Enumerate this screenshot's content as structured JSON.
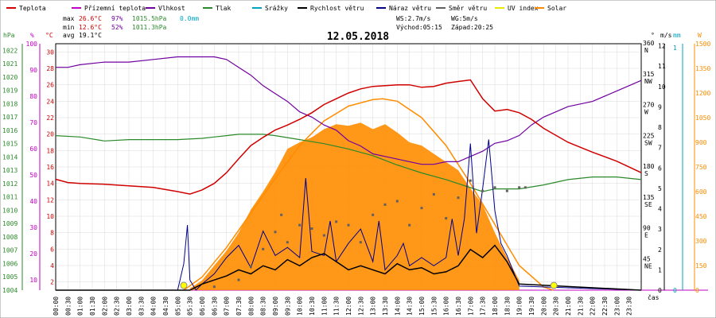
{
  "chart_data": {
    "type": "line",
    "title": "12.05.2018",
    "legend": [
      {
        "name": "Teplota",
        "color": "#d00000"
      },
      {
        "name": "Přízemní teplota",
        "color": "#c000c0"
      },
      {
        "name": "Vlhkost",
        "color": "#7000a0"
      },
      {
        "name": "Tlak",
        "color": "#2a8a2a"
      },
      {
        "name": "Srážky",
        "color": "#00a0c0"
      },
      {
        "name": "Rychlost větru",
        "color": "#000000"
      },
      {
        "name": "Náraz větru",
        "color": "#00008b"
      },
      {
        "name": "Směr větru",
        "color": "#606060"
      },
      {
        "name": "UV index",
        "color": "#e8e800"
      },
      {
        "name": "Solar",
        "color": "#ff8c00"
      }
    ],
    "stats": {
      "max_label": "max",
      "max_temp": "26.6°C",
      "max_hum": "97%",
      "max_press": "1015.5hPa",
      "rain_total": "0.0mm",
      "min_label": "min",
      "min_temp": "12.6°C",
      "min_hum": "52%",
      "min_press": "1011.3hPa",
      "avg_label": "avg",
      "avg_temp": "19.1°C"
    },
    "wind_info": {
      "ws": "WS:2.7m/s",
      "wg": "WG:5m/s",
      "sunrise": "Východ:05:15",
      "sunset": "Západ:20:25"
    },
    "axis_units": {
      "hpa": "hPa",
      "pct": "%",
      "degc": "°C",
      "deg": "°",
      "ms": "m/s",
      "mm": "mm",
      "w": "W",
      "xlabel": "čas"
    },
    "x_ticks": [
      "00:00",
      "00:30",
      "01:00",
      "01:30",
      "02:00",
      "02:30",
      "03:00",
      "03:30",
      "04:00",
      "04:30",
      "05:00",
      "05:30",
      "06:00",
      "06:30",
      "07:00",
      "07:30",
      "08:00",
      "08:30",
      "09:00",
      "09:30",
      "10:00",
      "10:30",
      "11:00",
      "11:30",
      "12:00",
      "12:30",
      "13:00",
      "13:30",
      "14:00",
      "14:30",
      "15:00",
      "15:30",
      "16:00",
      "16:30",
      "17:00",
      "17:30",
      "18:00",
      "18:30",
      "19:00",
      "19:30",
      "20:00",
      "20:30",
      "21:00",
      "21:30",
      "22:00",
      "22:30",
      "23:00",
      "23:30"
    ],
    "y_axes": {
      "hpa": [
        "1004",
        "1005",
        "1006",
        "1007",
        "1008",
        "1009",
        "1010",
        "1011",
        "1012",
        "1013",
        "1014",
        "1015",
        "1016",
        "1017",
        "1018",
        "1019",
        "1020",
        "1021",
        "1022"
      ],
      "pct": [
        "10",
        "20",
        "30",
        "40",
        "50",
        "60",
        "70",
        "80",
        "90",
        "100"
      ],
      "degc": [
        "2",
        "4",
        "6",
        "8",
        "10",
        "12",
        "14",
        "16",
        "18",
        "20",
        "22",
        "24",
        "26",
        "28",
        "30"
      ],
      "dir_deg": [
        "45",
        "90",
        "135",
        "180",
        "225",
        "270",
        "315",
        "360"
      ],
      "dir_label": [
        "NE",
        "E",
        "SE",
        "S",
        "SW",
        "W",
        "NW",
        "N"
      ],
      "ms": [
        "0",
        "1",
        "2",
        "3",
        "4",
        "5",
        "6",
        "7",
        "8",
        "9",
        "10",
        "11",
        "12"
      ],
      "mm": [
        "0",
        "1"
      ],
      "w": [
        "0",
        "150",
        "300",
        "450",
        "600",
        "750",
        "900",
        "1050",
        "1200",
        "1350",
        "1500"
      ]
    },
    "ranges": {
      "temp": [
        1,
        31
      ],
      "hum": [
        6,
        100
      ],
      "press": [
        1004,
        1022.5
      ],
      "wind": [
        0,
        12.1
      ],
      "dir": [
        0,
        360
      ],
      "solar": [
        0,
        1500
      ]
    },
    "series": [
      {
        "name": "Teplota",
        "unit": "°C",
        "x": [
          0,
          0.5,
          1,
          2,
          3,
          4,
          5,
          5.5,
          6,
          6.5,
          7,
          7.5,
          8,
          8.5,
          9,
          9.5,
          10,
          10.5,
          11,
          11.5,
          12,
          12.5,
          13,
          13.5,
          14,
          14.5,
          15,
          15.5,
          16,
          16.5,
          17,
          17.5,
          18,
          18.5,
          19,
          19.5,
          20,
          21,
          22,
          23,
          24
        ],
        "y": [
          14.5,
          14.1,
          14.0,
          13.9,
          13.7,
          13.5,
          13.0,
          12.7,
          13.2,
          14.0,
          15.3,
          17.0,
          18.6,
          19.6,
          20.5,
          21.1,
          21.8,
          22.6,
          23.6,
          24.3,
          25.0,
          25.5,
          25.8,
          25.9,
          26.0,
          26.0,
          25.7,
          25.8,
          26.2,
          26.4,
          26.6,
          24.3,
          22.8,
          23.0,
          22.6,
          21.8,
          20.7,
          19.0,
          17.8,
          16.7,
          15.3
        ]
      },
      {
        "name": "Vlhkost",
        "unit": "%",
        "x": [
          0,
          0.5,
          1,
          2,
          3,
          4,
          5,
          5.5,
          6,
          6.5,
          7,
          7.5,
          8,
          8.5,
          9,
          9.5,
          10,
          10.5,
          11,
          11.5,
          12,
          12.5,
          13,
          13.5,
          14,
          14.5,
          15,
          15.5,
          16,
          16.5,
          17,
          17.5,
          18,
          18.5,
          19,
          19.5,
          20,
          21,
          22,
          23,
          24
        ],
        "y": [
          91,
          91,
          92,
          93,
          93,
          94,
          95,
          95,
          95,
          95,
          94,
          91,
          88,
          84,
          81,
          78,
          74,
          72,
          69,
          67,
          63,
          61,
          58,
          57,
          56,
          55,
          54,
          54,
          55,
          55,
          57,
          59,
          62,
          63,
          65,
          69,
          72,
          76,
          78,
          82,
          86
        ]
      },
      {
        "name": "Tlak",
        "unit": "hPa",
        "x": [
          0,
          1,
          2,
          3,
          4,
          5,
          6,
          6.5,
          7,
          7.5,
          8,
          8.5,
          9,
          10,
          11,
          12,
          13,
          14,
          15,
          16,
          17,
          17.5,
          18,
          19,
          20,
          21,
          22,
          23,
          24
        ],
        "y": [
          1015.6,
          1015.5,
          1015.2,
          1015.3,
          1015.3,
          1015.3,
          1015.4,
          1015.5,
          1015.6,
          1015.7,
          1015.7,
          1015.7,
          1015.6,
          1015.3,
          1015.0,
          1014.6,
          1014.1,
          1013.4,
          1012.8,
          1012.3,
          1011.7,
          1011.4,
          1011.6,
          1011.6,
          1011.9,
          1012.3,
          1012.5,
          1012.5,
          1012.3
        ]
      },
      {
        "name": "Rychlost větru",
        "unit": "m/s",
        "x": [
          0,
          5,
          5.5,
          6,
          6.5,
          7,
          7.5,
          8,
          8.5,
          9,
          9.5,
          10,
          10.5,
          11,
          11.5,
          12,
          12.5,
          13,
          13.5,
          14,
          14.5,
          15,
          15.5,
          16,
          16.5,
          17,
          17.5,
          18,
          18.5,
          19,
          24
        ],
        "y": [
          0,
          0,
          0,
          0.3,
          0.5,
          0.7,
          1.0,
          0.8,
          1.2,
          1.0,
          1.5,
          1.2,
          1.6,
          1.8,
          1.4,
          1.0,
          1.2,
          1.0,
          0.8,
          1.3,
          1.0,
          1.1,
          0.8,
          0.9,
          1.2,
          2.0,
          1.6,
          2.2,
          1.4,
          0.3,
          0
        ]
      },
      {
        "name": "Náraz větru",
        "unit": "m/s",
        "x": [
          0,
          5,
          5.25,
          5.4,
          5.5,
          5.75,
          6,
          6.5,
          7,
          7.5,
          8,
          8.5,
          9,
          9.5,
          10,
          10.25,
          10.5,
          11,
          11.25,
          11.5,
          12,
          12.5,
          13,
          13.25,
          13.5,
          14,
          14.25,
          14.5,
          15,
          15.5,
          16,
          16.25,
          16.5,
          16.75,
          17,
          17.25,
          17.5,
          17.75,
          18,
          18.25,
          18.5,
          19,
          24
        ],
        "y": [
          0,
          0,
          1.3,
          3.2,
          0.5,
          0,
          0.3,
          0.8,
          1.6,
          2.2,
          1.1,
          2.9,
          1.7,
          2.1,
          1.6,
          5.5,
          1.9,
          1.7,
          3.4,
          1.4,
          2.3,
          3.0,
          1.4,
          3.4,
          1.0,
          1.7,
          2.3,
          1.2,
          1.6,
          1.2,
          1.6,
          3.5,
          1.7,
          3.5,
          7.2,
          2.8,
          5.0,
          7.4,
          3.9,
          2.3,
          1.7,
          0.2,
          0
        ]
      },
      {
        "name": "Směr větru",
        "unit": "°",
        "x": [
          6.5,
          7.5,
          8,
          8.5,
          9,
          9.25,
          9.5,
          10,
          10.5,
          11,
          11.5,
          12,
          12.5,
          13,
          13.5,
          14,
          14.5,
          15,
          15.5,
          16,
          16.5,
          17,
          17.5,
          18,
          18.5,
          19,
          19.25
        ],
        "y": [
          5,
          15,
          35,
          60,
          85,
          110,
          70,
          95,
          90,
          80,
          100,
          95,
          70,
          110,
          125,
          130,
          95,
          120,
          140,
          105,
          135,
          160,
          145,
          150,
          145,
          150,
          150
        ]
      },
      {
        "name": "Solar",
        "unit": "W",
        "x": [
          5.5,
          6,
          6.5,
          7,
          7.5,
          8,
          8.5,
          9,
          9.5,
          10,
          10.5,
          11,
          11.5,
          12,
          12.5,
          13,
          13.5,
          14,
          14.5,
          15,
          15.5,
          16,
          16.5,
          17,
          17.5,
          18,
          18.5,
          19
        ],
        "y": [
          10,
          60,
          150,
          240,
          350,
          490,
          600,
          720,
          860,
          900,
          930,
          980,
          1010,
          1000,
          1020,
          980,
          1010,
          960,
          900,
          880,
          830,
          780,
          730,
          620,
          520,
          350,
          200,
          60
        ]
      },
      {
        "name": "Solar max",
        "unit": "W",
        "x": [
          5.25,
          6,
          7,
          8,
          9,
          10,
          11,
          12,
          13,
          13.4,
          14,
          15,
          16,
          17,
          18,
          19,
          20,
          20.4
        ],
        "y": [
          0,
          80,
          260,
          470,
          680,
          880,
          1030,
          1120,
          1160,
          1165,
          1150,
          1050,
          880,
          650,
          400,
          150,
          20,
          0
        ]
      }
    ]
  }
}
